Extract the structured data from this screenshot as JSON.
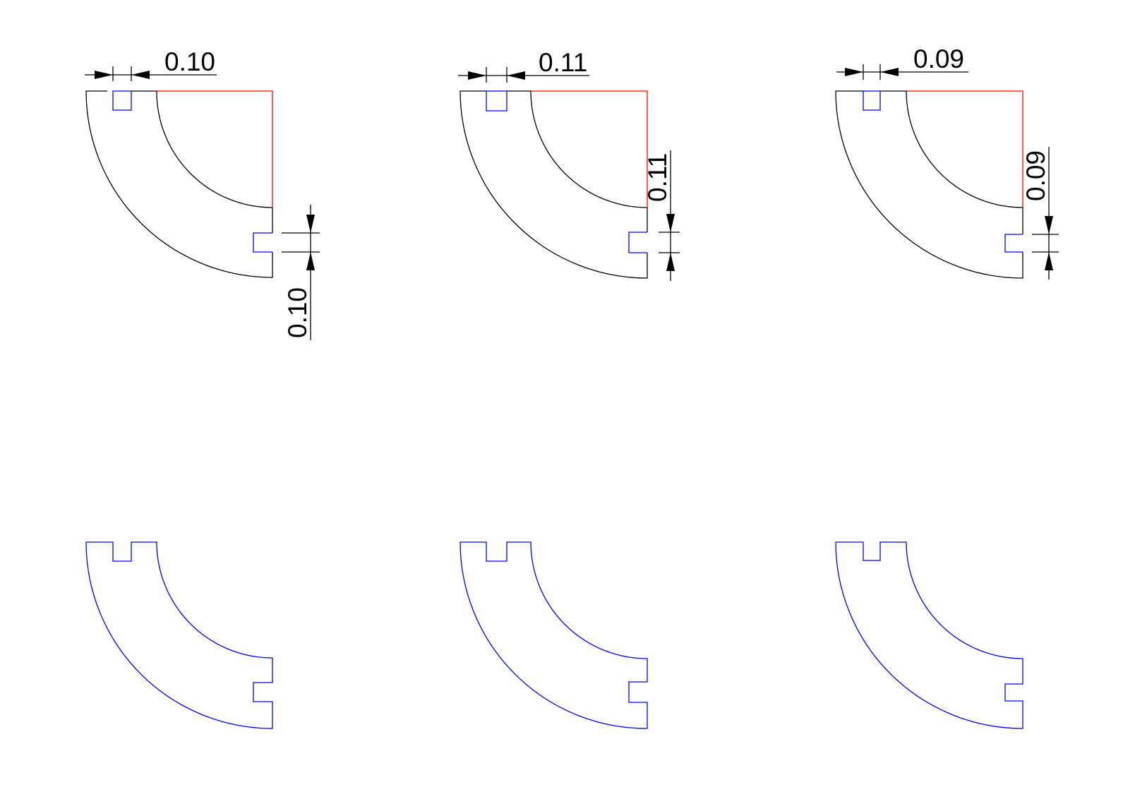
{
  "colors": {
    "outline": "#000000",
    "slot": "#0000ff",
    "edge": "#ff0000",
    "profile": "#0000ff"
  },
  "dimensions": [
    {
      "top": "0.10",
      "side": "0.10"
    },
    {
      "top": "0.11",
      "side": "0.11"
    },
    {
      "top": "0.09",
      "side": "0.09"
    }
  ]
}
